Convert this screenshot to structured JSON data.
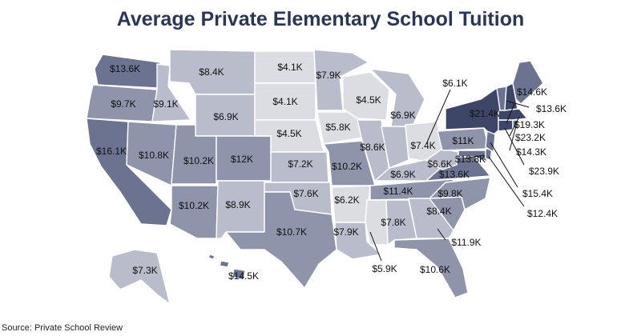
{
  "title": "Average Private Elementary School Tuition",
  "source": "Source: Private School Review",
  "colors": {
    "darkest": "#3e4668",
    "dark": "#6b7390",
    "mid": "#8e94aa",
    "light": "#b9bccb",
    "lightest": "#dcdde3"
  },
  "states": [
    {
      "id": "WA",
      "label": "$13.6K"
    },
    {
      "id": "OR",
      "label": "$9.7K"
    },
    {
      "id": "CA",
      "label": "$16.1K"
    },
    {
      "id": "NV",
      "label": "$10.8K"
    },
    {
      "id": "ID",
      "label": "$9.1K"
    },
    {
      "id": "MT",
      "label": "$8.4K"
    },
    {
      "id": "WY",
      "label": "$6.9K"
    },
    {
      "id": "UT",
      "label": "$10.2K"
    },
    {
      "id": "AZ",
      "label": "$10.2K"
    },
    {
      "id": "CO",
      "label": "$12K"
    },
    {
      "id": "NM",
      "label": "$8.9K"
    },
    {
      "id": "ND",
      "label": "$4.1K"
    },
    {
      "id": "SD",
      "label": "$4.1K"
    },
    {
      "id": "NE",
      "label": "$4.5K"
    },
    {
      "id": "KS",
      "label": "$7.2K"
    },
    {
      "id": "OK",
      "label": "$7.6K"
    },
    {
      "id": "TX",
      "label": "$10.7K"
    },
    {
      "id": "MN",
      "label": "$7.9K"
    },
    {
      "id": "IA",
      "label": "$5.8K"
    },
    {
      "id": "MO",
      "label": "$10.2K"
    },
    {
      "id": "AR",
      "label": "$6.2K"
    },
    {
      "id": "LA",
      "label": "$7.9K"
    },
    {
      "id": "WI",
      "label": "$4.5K"
    },
    {
      "id": "IL",
      "label": "$8.6K"
    },
    {
      "id": "MI",
      "label": "$6.9K"
    },
    {
      "id": "IN",
      "label": "$7.4K"
    },
    {
      "id": "OH",
      "label": "$6.1K"
    },
    {
      "id": "KY",
      "label": "$6.9K"
    },
    {
      "id": "TN",
      "label": "$11.4K"
    },
    {
      "id": "MS",
      "label": "$5.9K"
    },
    {
      "id": "AL",
      "label": "$7.8K"
    },
    {
      "id": "GA",
      "label": "$8.4K"
    },
    {
      "id": "FL",
      "label": "$10.6K"
    },
    {
      "id": "SC",
      "label": "$11.9K"
    },
    {
      "id": "NC",
      "label": "$9.8K"
    },
    {
      "id": "VA",
      "label": "$13.6K"
    },
    {
      "id": "WV",
      "label": "$6.6K"
    },
    {
      "id": "PA",
      "label": "$11K"
    },
    {
      "id": "NY",
      "label": "$21.4K"
    },
    {
      "id": "MD",
      "label": "$13.8K"
    },
    {
      "id": "DE",
      "label": "$12.4K"
    },
    {
      "id": "NJ",
      "label": "$15.4K"
    },
    {
      "id": "CT",
      "label": "$23.9K"
    },
    {
      "id": "RI",
      "label": "$14.3K"
    },
    {
      "id": "MA",
      "label": "$23.2K"
    },
    {
      "id": "NH",
      "label": "$19.3K"
    },
    {
      "id": "VT",
      "label": "$13.6K"
    },
    {
      "id": "ME",
      "label": "$14.6K"
    },
    {
      "id": "AK",
      "label": "$7.3K"
    },
    {
      "id": "HI",
      "label": "$14.5K"
    }
  ]
}
